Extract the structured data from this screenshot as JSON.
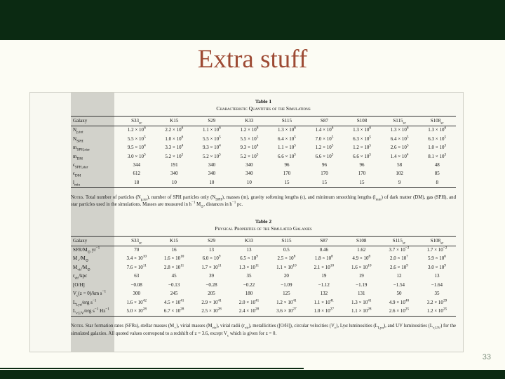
{
  "slide": {
    "title": "Extra stuff",
    "page_number": "33",
    "colors": {
      "bar_green": "#0b2a12",
      "title_rust": "#9d4a33",
      "page_number_gray": "#7f907f",
      "label_band_gray": "#d2d2cb"
    }
  },
  "table1": {
    "caption_label": "Table 1",
    "caption_title": "Characteristic Quantities of the Simulations",
    "columns": [
      "Galaxy",
      "S33_{sc}",
      "K15",
      "S29",
      "K33",
      "S115",
      "S87",
      "S108",
      "S115_{sc}",
      "S108_{sc}"
    ],
    "rows": [
      {
        "label": "N_{p,tot}",
        "values": [
          "1.2 × 10^{6}",
          "2.2 × 10^{6}",
          "1.1 × 10^{6}",
          "1.2 × 10^{6}",
          "1.3 × 10^{6}",
          "1.4 × 10^{6}",
          "1.3 × 10^{6}",
          "1.3 × 10^{6}",
          "1.3 × 10^{6}"
        ]
      },
      {
        "label": "N_{SPH}",
        "values": [
          "5.5 × 10^{5}",
          "1.0 × 10^{6}",
          "5.5 × 10^{5}",
          "5.5 × 10^{5}",
          "6.4 × 10^{5}",
          "7.0 × 10^{5}",
          "6.3 × 10^{5}",
          "6.4 × 10^{5}",
          "6.3 × 10^{5}"
        ]
      },
      {
        "label": "m_{SPH,star}",
        "values": [
          "9.5 × 10^{4}",
          "3.3 × 10^{4}",
          "9.3 × 10^{4}",
          "9.3 × 10^{4}",
          "1.1 × 10^{5}",
          "1.2 × 10^{5}",
          "1.2 × 10^{5}",
          "2.6 × 10^{3}",
          "1.0 × 10^{3}"
        ]
      },
      {
        "label": "m_{DM}",
        "values": [
          "3.0 × 10^{5}",
          "5.2 × 10^{5}",
          "5.2 × 10^{5}",
          "5.2 × 10^{5}",
          "6.6 × 10^{5}",
          "6.6 × 10^{5}",
          "6.6 × 10^{5}",
          "1.4 × 10^{4}",
          "8.1 × 10^{3}"
        ]
      },
      {
        "label": "ϵ_{SPH,star}",
        "values": [
          "344",
          "191",
          "340",
          "340",
          "96",
          "96",
          "96",
          "58",
          "48"
        ]
      },
      {
        "label": "ϵ_{DM}",
        "values": [
          "612",
          "340",
          "340",
          "340",
          "170",
          "170",
          "170",
          "102",
          "85"
        ]
      },
      {
        "label": "l_{min}",
        "values": [
          "18",
          "10",
          "10",
          "10",
          "15",
          "15",
          "15",
          "9",
          "8"
        ]
      }
    ],
    "notes_lead": "Notes.",
    "notes": " Total number of particles (N_{p,tot}), number of SPH particles only (N_{SPH}), masses (m), gravity softening lengths (ϵ), and minimum smoothing lengths (l_{min}) of dark matter (DM), gas (SPH), and star particles used in the simulations. Masses are measured in h^{−1} M_{⊙}, distances in h^{−1} pc."
  },
  "table2": {
    "caption_label": "Table 2",
    "caption_title": "Physical Properties of the Simulated Galaxies",
    "columns": [
      "Galaxy",
      "S33_{sc}",
      "K15",
      "S29",
      "K33",
      "S115",
      "S87",
      "S108",
      "S115_{sc}",
      "S108_{sc}"
    ],
    "rows": [
      {
        "label": "SFR/M_{⊙} yr^{−1}",
        "values": [
          "70",
          "16",
          "13",
          "13",
          "0.5",
          "0.46",
          "1.62",
          "3.7 × 10^{−2}",
          "1.7 × 10^{−2}"
        ]
      },
      {
        "label": "M_{⋆}/M_{⊙}",
        "values": [
          "3.4 × 10^{10}",
          "1.6 × 10^{10}",
          "6.0 × 10^{9}",
          "6.5 × 10^{9}",
          "2.5 × 10^{8}",
          "1.8 × 10^{8}",
          "4.9 × 10^{8}",
          "2.0 × 10^{7}",
          "5.9 × 10^{6}"
        ]
      },
      {
        "label": "M_{vir}/M_{⊙}",
        "values": [
          "7.6 × 10^{11}",
          "2.8 × 10^{11}",
          "1.7 × 10^{11}",
          "1.3 × 10^{11}",
          "1.1 × 10^{10}",
          "2.1 × 10^{10}",
          "1.6 × 10^{10}",
          "2.6 × 10^{9}",
          "3.0 × 10^{9}"
        ]
      },
      {
        "label": "r_{vir}/kpc",
        "values": [
          "63",
          "45",
          "39",
          "35",
          "20",
          "19",
          "19",
          "12",
          "13"
        ]
      },
      {
        "label": "[O/H]",
        "values": [
          "−0.08",
          "−0.13",
          "−0.28",
          "−0.22",
          "−1.09",
          "−1.12",
          "−1.19",
          "−1.54",
          "−1.64"
        ]
      },
      {
        "label": "V_{c}(z = 0)/km s^{−1}",
        "values": [
          "300",
          "245",
          "205",
          "180",
          "125",
          "132",
          "131",
          "50",
          "35"
        ]
      },
      {
        "label": "L_{Lyα}/erg s^{−1}",
        "values": [
          "1.6 × 10^{42}",
          "4.5 × 10^{41}",
          "2.9 × 10^{41}",
          "2.0 × 10^{41}",
          "1.2 × 10^{41}",
          "1.1 × 10^{41}",
          "1.3 × 10^{41}",
          "4.9 × 10^{40}",
          "3.2 × 10^{39}"
        ]
      },
      {
        "label": "L_{ν,UV}/erg s^{−1} Hz^{−1}",
        "values": [
          "5.0 × 10^{28}",
          "6.7 × 10^{28}",
          "2.5 × 10^{28}",
          "2.4 × 10^{28}",
          "3.6 × 10^{27}",
          "1.0 × 10^{27}",
          "1.1 × 10^{28}",
          "2.6 × 10^{25}",
          "1.2 × 10^{25}"
        ]
      }
    ],
    "notes_lead": "Notes.",
    "notes": " Star formation rates (SFRs), stellar masses (M_{⋆}), virial masses (M_{vir}), virial radii (r_{vir}), metallicities ([O/H]), circular velocities (V_{c}), Lyα luminosities (L_{Lyα}), and UV luminosities (L_{ν,UV}) for the simulated galaxies. All quoted values correspond to a redshift of z = 3.6, except V_{c} which is given for z = 0."
  }
}
